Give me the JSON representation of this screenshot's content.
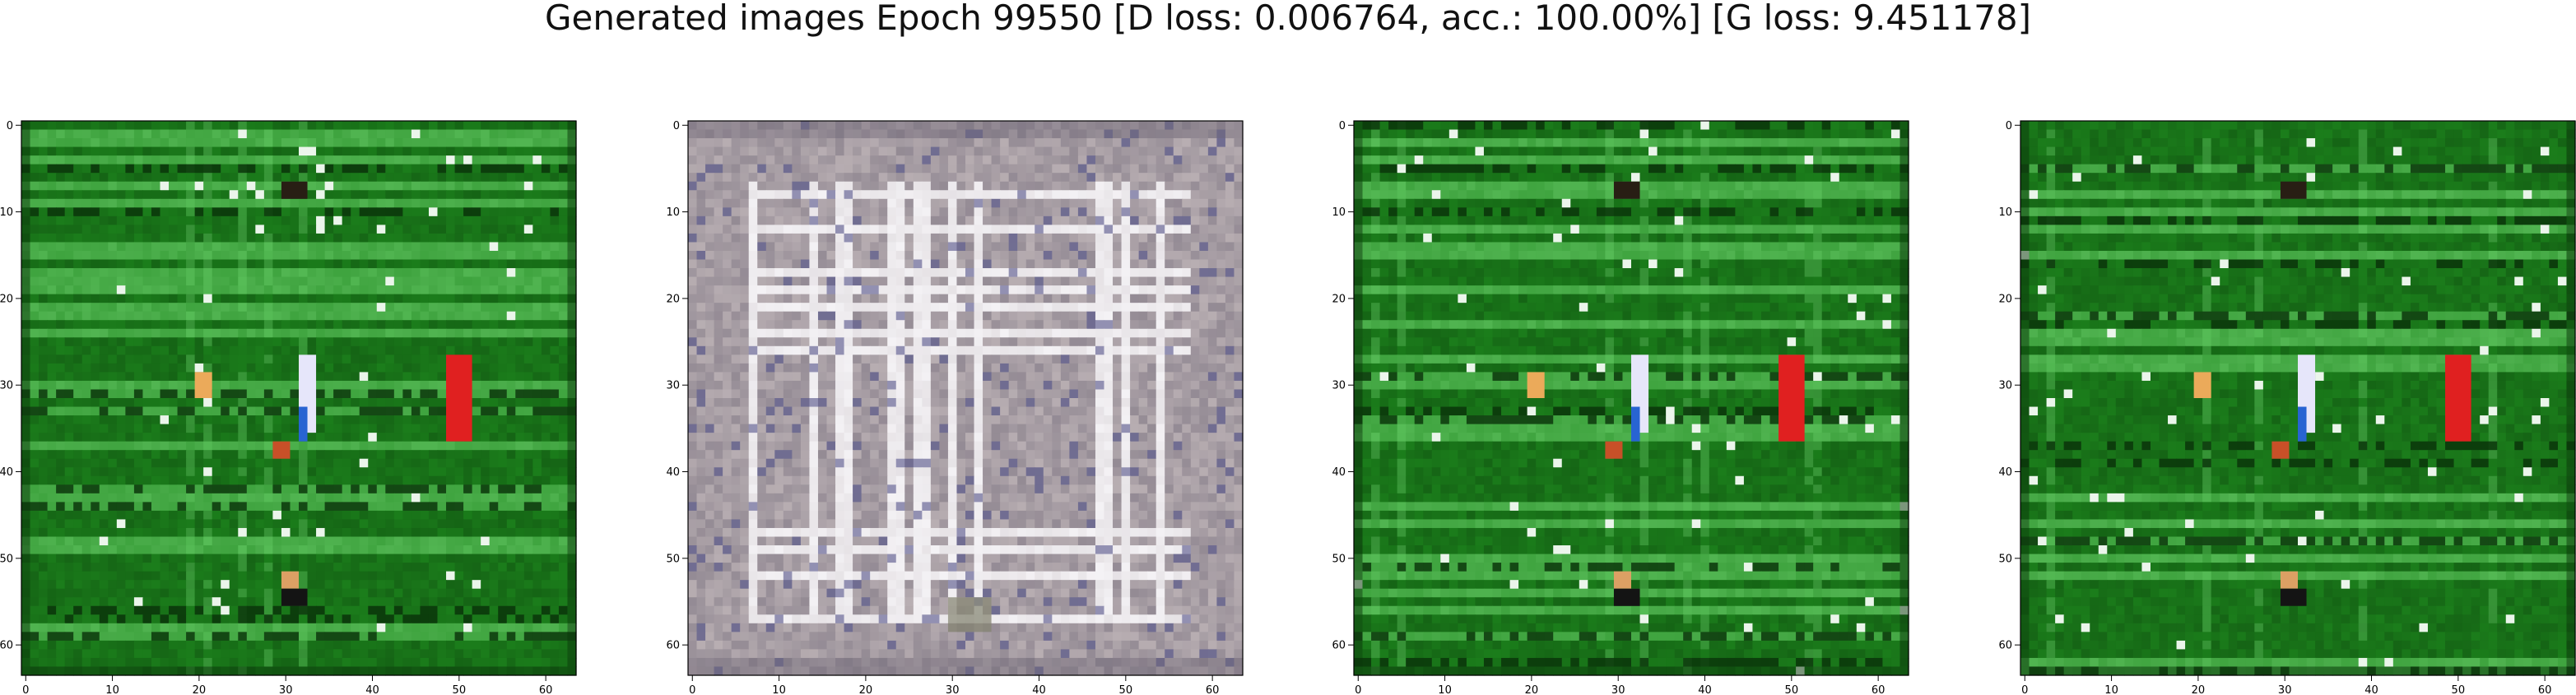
{
  "figure": {
    "title": "Generated images Epoch 99550 [D loss: 0.006764, acc.: 100.00%] [G loss: 9.451178]"
  },
  "panels": [
    {
      "content": "green-noise",
      "theme": {
        "base": "#1b7d1b",
        "line": "#5cc45c",
        "dark": "#0a360a",
        "accent": "#e02020"
      },
      "xticks": [
        "0",
        "10",
        "20",
        "30",
        "40",
        "50",
        "60"
      ],
      "yticks": [
        "0",
        "10",
        "20",
        "30",
        "40",
        "50",
        "60"
      ]
    },
    {
      "content": "gray-grid",
      "theme": {
        "base": "#b8aeb2",
        "line": "#f4f2f5",
        "dark": "#6a6272",
        "accent": "#5a5a90"
      },
      "xticks": [
        "0",
        "10",
        "20",
        "30",
        "40",
        "50",
        "60"
      ],
      "yticks": [
        "0",
        "10",
        "20",
        "30",
        "40",
        "50",
        "60"
      ]
    },
    {
      "content": "green-noise",
      "theme": {
        "base": "#1b7d1b",
        "line": "#5cc45c",
        "dark": "#0a360a",
        "accent": "#e02020"
      },
      "xticks": [
        "0",
        "10",
        "20",
        "30",
        "40",
        "50",
        "60"
      ],
      "yticks": [
        "0",
        "10",
        "20",
        "30",
        "40",
        "50",
        "60"
      ]
    },
    {
      "content": "green-noise",
      "theme": {
        "base": "#1b7d1b",
        "line": "#5cc45c",
        "dark": "#0a360a",
        "accent": "#e02020"
      },
      "xticks": [
        "0",
        "10",
        "20",
        "30",
        "40",
        "50",
        "60"
      ],
      "yticks": [
        "0",
        "10",
        "20",
        "30",
        "40",
        "50",
        "60"
      ]
    }
  ]
}
